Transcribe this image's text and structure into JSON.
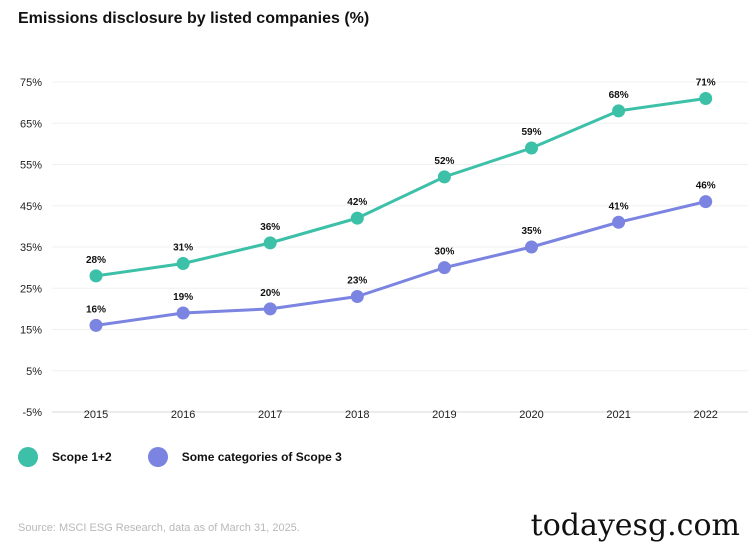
{
  "title": "Emissions disclosure by listed companies (%)",
  "chart_data": {
    "type": "line",
    "title": "Emissions disclosure by listed companies (%)",
    "categories": [
      "2015",
      "2016",
      "2017",
      "2018",
      "2019",
      "2020",
      "2021",
      "2022"
    ],
    "yticks": [
      "75%",
      "65%",
      "55%",
      "45%",
      "35%",
      "25%",
      "15%",
      "5%",
      "-5%"
    ],
    "ylim": [
      -5,
      75
    ],
    "series": [
      {
        "name": "Scope 1+2",
        "color": "#3cc0a8",
        "values": [
          28,
          31,
          36,
          42,
          52,
          59,
          68,
          71
        ],
        "labels": [
          "28%",
          "31%",
          "36%",
          "42%",
          "52%",
          "59%",
          "68%",
          "71%"
        ]
      },
      {
        "name": "Some categories of Scope 3",
        "color": "#7b84e0",
        "values": [
          16,
          19,
          20,
          23,
          30,
          35,
          41,
          46
        ],
        "labels": [
          "16%",
          "19%",
          "20%",
          "23%",
          "30%",
          "35%",
          "41%",
          "46%"
        ]
      }
    ],
    "legend": "bottom-left"
  },
  "legend": {
    "scope12": "Scope 1+2",
    "scope3": "Some categories of Scope 3"
  },
  "source": "Source: MSCI ESG Research, data as of March 31, 2025.",
  "watermark": "todayesg.com"
}
